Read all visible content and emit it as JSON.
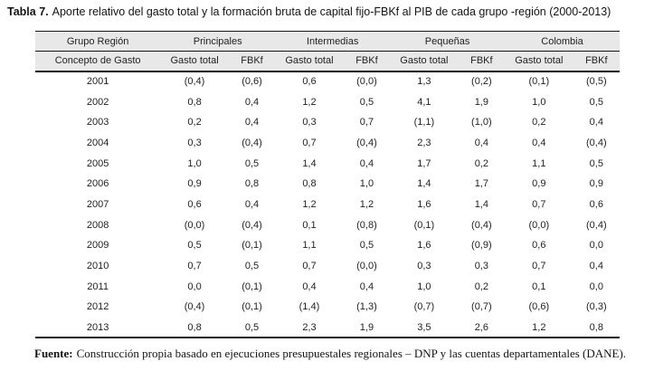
{
  "title": {
    "label": "Tabla 7.",
    "text": "Aporte relativo del gasto total y la formación bruta de capital fijo-FBKf al PIB de cada grupo -región (2000-2013)"
  },
  "table": {
    "group_header": [
      "Grupo Región",
      "Principales",
      "Intermedias",
      "Pequeñas",
      "Colombia"
    ],
    "sub_header": [
      "Concepto de Gasto",
      "Gasto total",
      "FBKf",
      "Gasto total",
      "FBKf",
      "Gasto total",
      "FBKf",
      "Gasto total",
      "FBKf"
    ],
    "rows": [
      {
        "year": "2001",
        "values": [
          "(0,4)",
          "(0,6)",
          "0,6",
          "(0,0)",
          "1,3",
          "(0,2)",
          "(0,1)",
          "(0,5)"
        ]
      },
      {
        "year": "2002",
        "values": [
          "0,8",
          "0,4",
          "1,2",
          "0,5",
          "4,1",
          "1,9",
          "1,0",
          "0,5"
        ]
      },
      {
        "year": "2003",
        "values": [
          "0,2",
          "0,4",
          "0,3",
          "0,7",
          "(1,1)",
          "(1,0)",
          "0,2",
          "0,4"
        ]
      },
      {
        "year": "2004",
        "values": [
          "0,3",
          "(0,4)",
          "0,7",
          "(0,4)",
          "2,3",
          "0,4",
          "0,4",
          "(0,4)"
        ]
      },
      {
        "year": "2005",
        "values": [
          "1,0",
          "0,5",
          "1,4",
          "0,4",
          "1,7",
          "0,2",
          "1,1",
          "0,5"
        ]
      },
      {
        "year": "2006",
        "values": [
          "0,9",
          "0,8",
          "0,8",
          "1,0",
          "1,4",
          "1,7",
          "0,9",
          "0,9"
        ]
      },
      {
        "year": "2007",
        "values": [
          "0,6",
          "0,4",
          "1,2",
          "1,2",
          "1,6",
          "1,4",
          "0,7",
          "0,6"
        ]
      },
      {
        "year": "2008",
        "values": [
          "(0,0)",
          "(0,4)",
          "0,1",
          "(0,8)",
          "(0,1)",
          "(0,4)",
          "(0,0)",
          "(0,4)"
        ]
      },
      {
        "year": "2009",
        "values": [
          "0,5",
          "(0,1)",
          "1,1",
          "0,5",
          "1,6",
          "(0,9)",
          "0,6",
          "0,0"
        ]
      },
      {
        "year": "2010",
        "values": [
          "0,7",
          "0,5",
          "0,7",
          "(0,0)",
          "0,3",
          "0,3",
          "0,7",
          "0,4"
        ]
      },
      {
        "year": "2011",
        "values": [
          "0,0",
          "(0,1)",
          "0,4",
          "0,4",
          "1,0",
          "0,2",
          "0,1",
          "0,0"
        ]
      },
      {
        "year": "2012",
        "values": [
          "(0,4)",
          "(0,1)",
          "(1,4)",
          "(1,3)",
          "(0,7)",
          "(0,7)",
          "(0,6)",
          "(0,3)"
        ]
      },
      {
        "year": "2013",
        "values": [
          "0,8",
          "0,5",
          "2,3",
          "1,9",
          "3,5",
          "2,6",
          "1,2",
          "0,8"
        ]
      }
    ]
  },
  "footer": {
    "label": "Fuente:",
    "text": "Construcción propia basado en ejecuciones presupuestales regionales – DNP y las cuentas departamentales (DANE)."
  },
  "colors": {
    "header_bg": "#e8e8e8",
    "rule": "#161616",
    "text": "#1f1f1f"
  }
}
